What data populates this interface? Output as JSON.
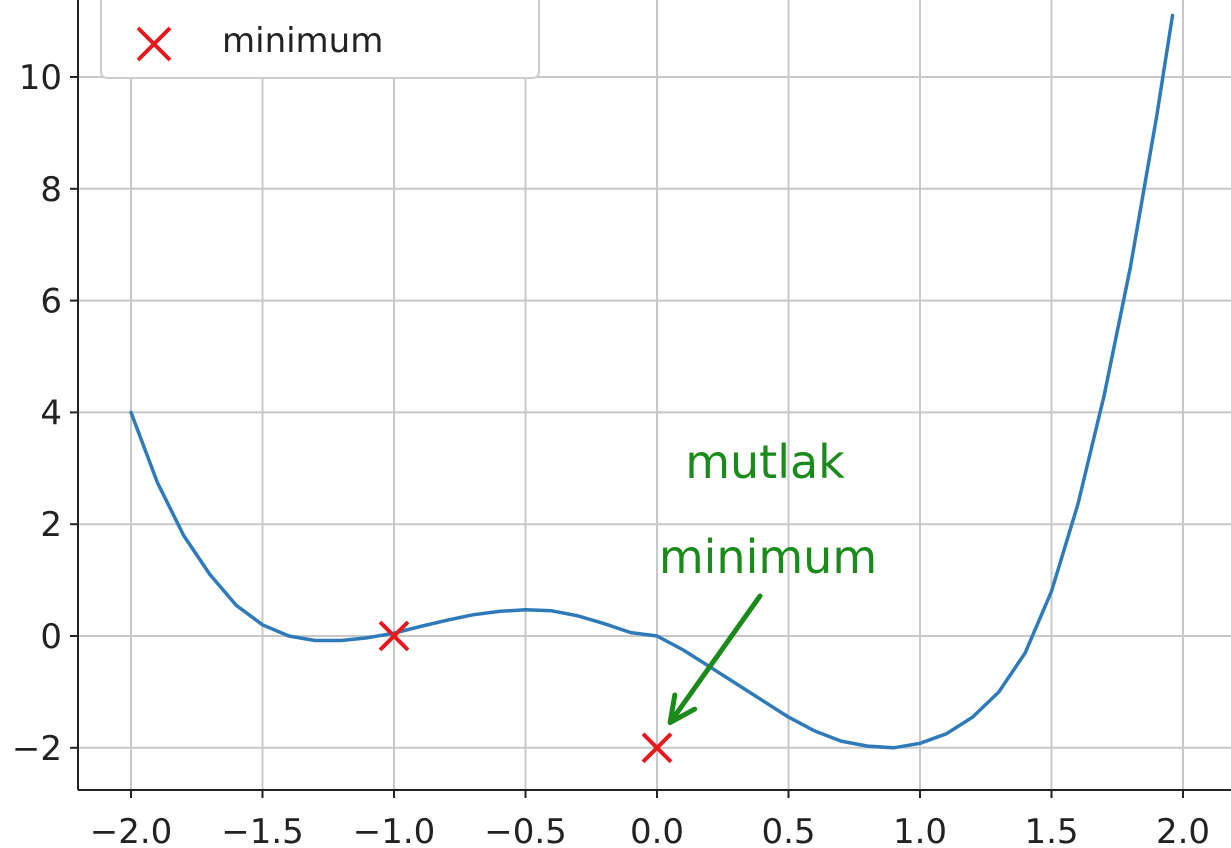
{
  "chart_data": {
    "type": "line",
    "title": "",
    "xlabel": "",
    "ylabel": "",
    "xlim": [
      -2.2,
      2.15
    ],
    "ylim": [
      -2.75,
      11.1
    ],
    "grid": true,
    "x_ticks": [
      -2.0,
      -1.5,
      -1.0,
      -0.5,
      0.0,
      0.5,
      1.0,
      1.5,
      2.0
    ],
    "x_tick_labels": [
      "−2.0",
      "−1.5",
      "−1.0",
      "−0.5",
      "0.0",
      "0.5",
      "1.0",
      "1.5",
      "2.0"
    ],
    "y_ticks": [
      -2,
      0,
      2,
      4,
      6,
      8,
      10
    ],
    "y_tick_labels": [
      "−2",
      "0",
      "2",
      "4",
      "6",
      "8",
      "10"
    ],
    "series": [
      {
        "kind": "line",
        "color": "#2f7ab9",
        "x": [
          -2.0,
          -1.9,
          -1.8,
          -1.7,
          -1.6,
          -1.5,
          -1.4,
          -1.3,
          -1.2,
          -1.1,
          -1.0,
          -0.9,
          -0.8,
          -0.7,
          -0.6,
          -0.5,
          -0.4,
          -0.3,
          -0.2,
          -0.1,
          0.0,
          0.1,
          0.2,
          0.3,
          0.4,
          0.5,
          0.6,
          0.7,
          0.8,
          0.9,
          1.0,
          1.1,
          1.2,
          1.3,
          1.4,
          1.5,
          1.6,
          1.7,
          1.8,
          1.9,
          1.96
        ],
        "y": [
          4.0,
          2.75,
          1.8,
          1.1,
          0.55,
          0.2,
          0.0,
          -0.08,
          -0.08,
          -0.03,
          0.05,
          0.17,
          0.28,
          0.38,
          0.44,
          0.47,
          0.45,
          0.36,
          0.22,
          0.06,
          0.0,
          -0.25,
          -0.55,
          -0.85,
          -1.15,
          -1.45,
          -1.7,
          -1.88,
          -1.97,
          -2.0,
          -1.92,
          -1.75,
          -1.45,
          -1.0,
          -0.3,
          0.8,
          2.35,
          4.3,
          6.6,
          9.3,
          11.1
        ]
      },
      {
        "kind": "scatter",
        "name": "minimum",
        "marker": "x",
        "color": "#e8191c",
        "x": [
          -1.0,
          0.0
        ],
        "y": [
          0.0,
          -2.0
        ]
      }
    ],
    "legend": {
      "position": "top-left",
      "entries": [
        "minimum"
      ]
    },
    "annotations": [
      {
        "lines": [
          "mutlak",
          "minimum"
        ],
        "color": "#1a8a1a",
        "arrow_to": [
          0.05,
          -1.55
        ]
      }
    ]
  }
}
